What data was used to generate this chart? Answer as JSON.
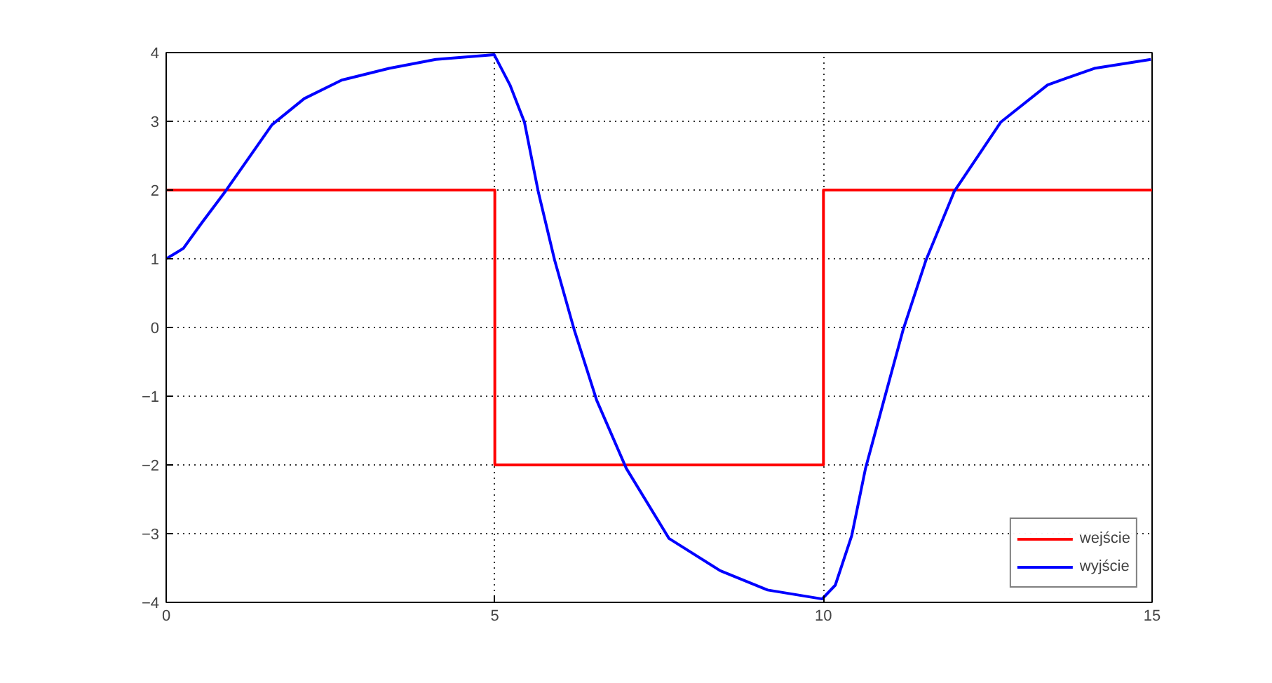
{
  "chart_data": {
    "type": "line",
    "xlim": [
      0,
      15
    ],
    "ylim": [
      -4,
      4
    ],
    "xticks": [
      0,
      5,
      10,
      15
    ],
    "yticks": [
      -4,
      -3,
      -2,
      -1,
      0,
      1,
      2,
      3,
      4
    ],
    "grid": true,
    "legend": "bottom right",
    "series": [
      {
        "name": "wejście",
        "type": "step",
        "color": "#ff0000",
        "x": [
          0,
          5,
          10,
          15
        ],
        "values": [
          2,
          -2,
          2,
          2
        ]
      },
      {
        "name": "wyjście",
        "color": "#0000ff",
        "x": [
          0,
          0.26,
          0.54,
          0.9,
          1.61,
          2.1,
          2.67,
          3.39,
          4.1,
          4.99,
          5.23,
          5.45,
          5.66,
          5.91,
          6.21,
          6.55,
          7.0,
          7.65,
          8.43,
          9.15,
          9.98,
          10.18,
          10.43,
          10.64,
          10.92,
          11.21,
          11.56,
          11.99,
          12.7,
          13.41,
          14.12,
          14.98
        ],
        "values": [
          1,
          1.15,
          1.52,
          1.98,
          2.95,
          3.33,
          3.6,
          3.77,
          3.9,
          3.97,
          3.53,
          2.99,
          1.98,
          0.98,
          -0.04,
          -1.06,
          -2.05,
          -3.07,
          -3.54,
          -3.82,
          -3.95,
          -3.75,
          -3.03,
          -2.05,
          -1.06,
          -0.04,
          0.98,
          1.98,
          2.99,
          3.53,
          3.77,
          3.9
        ]
      }
    ]
  }
}
